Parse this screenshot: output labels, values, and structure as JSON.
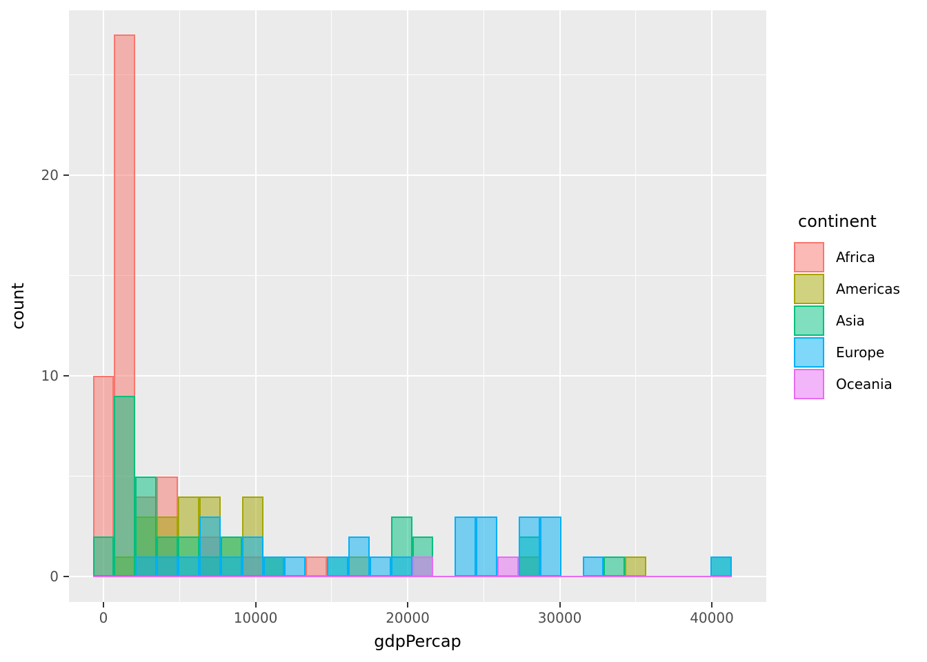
{
  "figure": {
    "background": "#ffffff",
    "panel_background": "#ebebeb",
    "gridline_color": "#ffffff",
    "tick_color": "#333333",
    "tick_label_color": "#4d4d4d"
  },
  "chart_data": {
    "type": "bar",
    "subtype": "overlaid-histogram",
    "title": "",
    "xlabel": "gdpPercap",
    "ylabel": "count",
    "legend_title": "continent",
    "legend_position": "right",
    "grid": "on",
    "binwidth": 1400,
    "fill_alpha": 0.5,
    "xlim": [
      -2268,
      43673
    ],
    "ylim": [
      -1.2,
      28.2
    ],
    "x_axis": {
      "ticks": [
        {
          "label": "0",
          "value": 0
        },
        {
          "label": "10000",
          "value": 10000
        },
        {
          "label": "20000",
          "value": 20000
        },
        {
          "label": "30000",
          "value": 30000
        },
        {
          "label": "40000",
          "value": 40000
        }
      ],
      "minor_ticks": [
        5000,
        15000,
        25000,
        35000
      ]
    },
    "y_axis": {
      "ticks": [
        {
          "label": "0",
          "value": 0
        },
        {
          "label": "10",
          "value": 10
        },
        {
          "label": "20",
          "value": 20
        }
      ],
      "minor_ticks": [
        5,
        15,
        25
      ]
    },
    "series": [
      {
        "name": "Africa",
        "color": "#F8766D"
      },
      {
        "name": "Americas",
        "color": "#A3A500"
      },
      {
        "name": "Asia",
        "color": "#00BF7D"
      },
      {
        "name": "Europe",
        "color": "#00B0F6"
      },
      {
        "name": "Oceania",
        "color": "#E76BF3"
      }
    ],
    "baseline_range": [
      -700,
      41300
    ],
    "bins": [
      {
        "center": 0,
        "counts": {
          "Africa": 10,
          "Asia": 2
        }
      },
      {
        "center": 1400,
        "counts": {
          "Africa": 27,
          "Americas": 1,
          "Asia": 9
        }
      },
      {
        "center": 2800,
        "counts": {
          "Africa": 4,
          "Americas": 3,
          "Asia": 5,
          "Europe": 1
        }
      },
      {
        "center": 4200,
        "counts": {
          "Africa": 5,
          "Americas": 3,
          "Asia": 2,
          "Europe": 1
        }
      },
      {
        "center": 5600,
        "counts": {
          "Americas": 4,
          "Asia": 2,
          "Europe": 1
        }
      },
      {
        "center": 7000,
        "counts": {
          "Africa": 2,
          "Americas": 4,
          "Asia": 1,
          "Europe": 3
        }
      },
      {
        "center": 8400,
        "counts": {
          "Americas": 2,
          "Asia": 2,
          "Europe": 1
        }
      },
      {
        "center": 9800,
        "counts": {
          "Africa": 1,
          "Americas": 4,
          "Europe": 2
        }
      },
      {
        "center": 11200,
        "counts": {
          "Americas": 1,
          "Asia": 1,
          "Europe": 1
        }
      },
      {
        "center": 12600,
        "counts": {
          "Europe": 1
        }
      },
      {
        "center": 14000,
        "counts": {
          "Africa": 1
        }
      },
      {
        "center": 15400,
        "counts": {
          "Asia": 1,
          "Europe": 1
        }
      },
      {
        "center": 16800,
        "counts": {
          "Americas": 1,
          "Europe": 2
        }
      },
      {
        "center": 18200,
        "counts": {
          "Europe": 1
        }
      },
      {
        "center": 19600,
        "counts": {
          "Asia": 3,
          "Europe": 1
        }
      },
      {
        "center": 21000,
        "counts": {
          "Asia": 2,
          "Oceania": 1
        }
      },
      {
        "center": 23800,
        "counts": {
          "Europe": 3
        }
      },
      {
        "center": 25200,
        "counts": {
          "Europe": 3
        }
      },
      {
        "center": 26600,
        "counts": {
          "Oceania": 1
        }
      },
      {
        "center": 28000,
        "counts": {
          "Americas": 1,
          "Asia": 2,
          "Europe": 3
        }
      },
      {
        "center": 29400,
        "counts": {
          "Europe": 3
        }
      },
      {
        "center": 32200,
        "counts": {
          "Europe": 1
        }
      },
      {
        "center": 33600,
        "counts": {
          "Asia": 1
        }
      },
      {
        "center": 35000,
        "counts": {
          "Americas": 1
        }
      },
      {
        "center": 40600,
        "counts": {
          "Asia": 1,
          "Europe": 1
        }
      }
    ]
  }
}
